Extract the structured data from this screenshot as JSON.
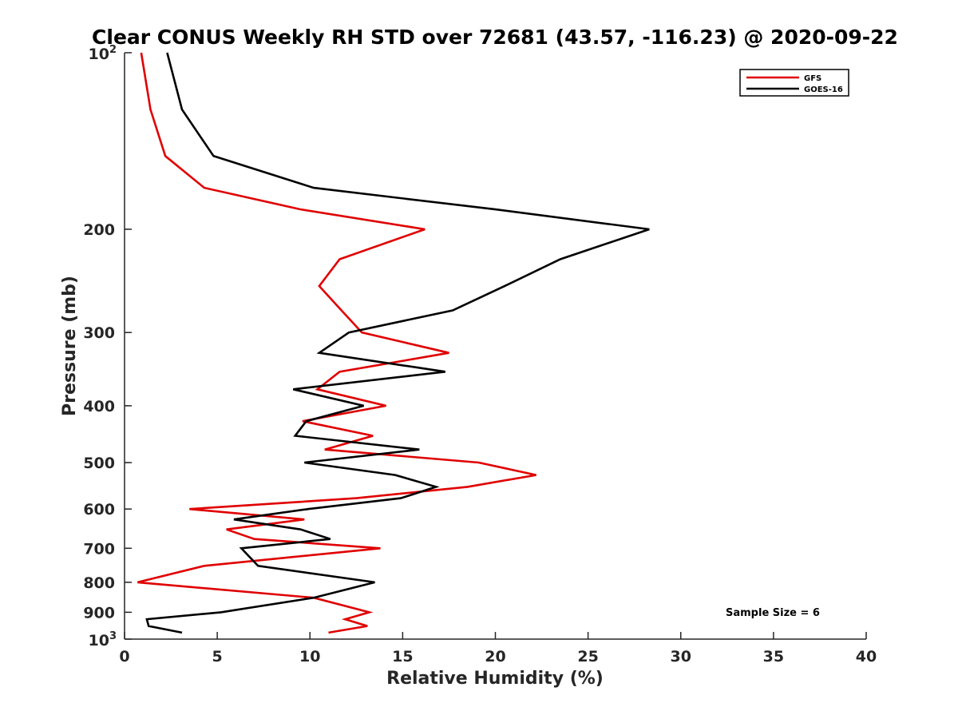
{
  "chart_data": {
    "type": "line",
    "title": "Clear CONUS Weekly RH STD over 72681 (43.57, -116.23) @ 2020-09-22",
    "xlabel": "Relative Humidity (%)",
    "ylabel": "Pressure (mb)",
    "xlim": [
      0,
      40
    ],
    "ylim": [
      100,
      1000
    ],
    "y_scale": "log",
    "y_reversed": true,
    "grid": false,
    "legend_position": "top-right",
    "x_ticks": [
      "0",
      "5",
      "10",
      "15",
      "20",
      "25",
      "30",
      "35",
      "40"
    ],
    "y_ticks": [
      {
        "value": 100,
        "base": "10",
        "exp": "2"
      },
      {
        "value": 200,
        "label": "200"
      },
      {
        "value": 300,
        "label": "300"
      },
      {
        "value": 400,
        "label": "400"
      },
      {
        "value": 500,
        "label": "500"
      },
      {
        "value": 600,
        "label": "600"
      },
      {
        "value": 700,
        "label": "700"
      },
      {
        "value": 800,
        "label": "800"
      },
      {
        "value": 900,
        "label": "900"
      },
      {
        "value": 1000,
        "base": "10",
        "exp": "3"
      }
    ],
    "annotation": "Sample Size = 6",
    "series": [
      {
        "name": "GFS",
        "color": "#e00000",
        "points": [
          {
            "p": 100,
            "rh": 0.9
          },
          {
            "p": 125,
            "rh": 1.4
          },
          {
            "p": 150,
            "rh": 2.2
          },
          {
            "p": 170,
            "rh": 4.3
          },
          {
            "p": 185,
            "rh": 9.5
          },
          {
            "p": 200,
            "rh": 16.2
          },
          {
            "p": 225,
            "rh": 11.6
          },
          {
            "p": 250,
            "rh": 10.5
          },
          {
            "p": 275,
            "rh": 11.7
          },
          {
            "p": 300,
            "rh": 12.8
          },
          {
            "p": 325,
            "rh": 17.5
          },
          {
            "p": 350,
            "rh": 11.6
          },
          {
            "p": 375,
            "rh": 10.4
          },
          {
            "p": 400,
            "rh": 14.1
          },
          {
            "p": 425,
            "rh": 9.6
          },
          {
            "p": 450,
            "rh": 13.4
          },
          {
            "p": 475,
            "rh": 10.8
          },
          {
            "p": 500,
            "rh": 19.1
          },
          {
            "p": 525,
            "rh": 22.2
          },
          {
            "p": 550,
            "rh": 18.5
          },
          {
            "p": 575,
            "rh": 12.5
          },
          {
            "p": 600,
            "rh": 3.5
          },
          {
            "p": 625,
            "rh": 9.7
          },
          {
            "p": 650,
            "rh": 5.5
          },
          {
            "p": 675,
            "rh": 7.0
          },
          {
            "p": 700,
            "rh": 13.8
          },
          {
            "p": 750,
            "rh": 4.3
          },
          {
            "p": 800,
            "rh": 0.7
          },
          {
            "p": 850,
            "rh": 10.2
          },
          {
            "p": 900,
            "rh": 13.2
          },
          {
            "p": 925,
            "rh": 11.9
          },
          {
            "p": 950,
            "rh": 13.1
          },
          {
            "p": 975,
            "rh": 11.0
          }
        ]
      },
      {
        "name": "GOES-16",
        "color": "#000000",
        "points": [
          {
            "p": 100,
            "rh": 2.3
          },
          {
            "p": 125,
            "rh": 3.1
          },
          {
            "p": 150,
            "rh": 4.8
          },
          {
            "p": 170,
            "rh": 10.2
          },
          {
            "p": 185,
            "rh": 20.0
          },
          {
            "p": 200,
            "rh": 28.3
          },
          {
            "p": 225,
            "rh": 23.5
          },
          {
            "p": 250,
            "rh": 20.5
          },
          {
            "p": 275,
            "rh": 17.7
          },
          {
            "p": 300,
            "rh": 12.1
          },
          {
            "p": 325,
            "rh": 10.5
          },
          {
            "p": 350,
            "rh": 17.3
          },
          {
            "p": 375,
            "rh": 9.1
          },
          {
            "p": 400,
            "rh": 12.9
          },
          {
            "p": 425,
            "rh": 9.8
          },
          {
            "p": 450,
            "rh": 9.2
          },
          {
            "p": 475,
            "rh": 15.9
          },
          {
            "p": 500,
            "rh": 9.7
          },
          {
            "p": 525,
            "rh": 14.6
          },
          {
            "p": 550,
            "rh": 16.8
          },
          {
            "p": 575,
            "rh": 14.9
          },
          {
            "p": 600,
            "rh": 9.9
          },
          {
            "p": 625,
            "rh": 5.9
          },
          {
            "p": 650,
            "rh": 9.5
          },
          {
            "p": 675,
            "rh": 11.1
          },
          {
            "p": 700,
            "rh": 6.3
          },
          {
            "p": 750,
            "rh": 7.2
          },
          {
            "p": 800,
            "rh": 13.5
          },
          {
            "p": 850,
            "rh": 10.2
          },
          {
            "p": 900,
            "rh": 5.2
          },
          {
            "p": 925,
            "rh": 1.2
          },
          {
            "p": 950,
            "rh": 1.3
          },
          {
            "p": 975,
            "rh": 3.1
          }
        ]
      }
    ]
  }
}
